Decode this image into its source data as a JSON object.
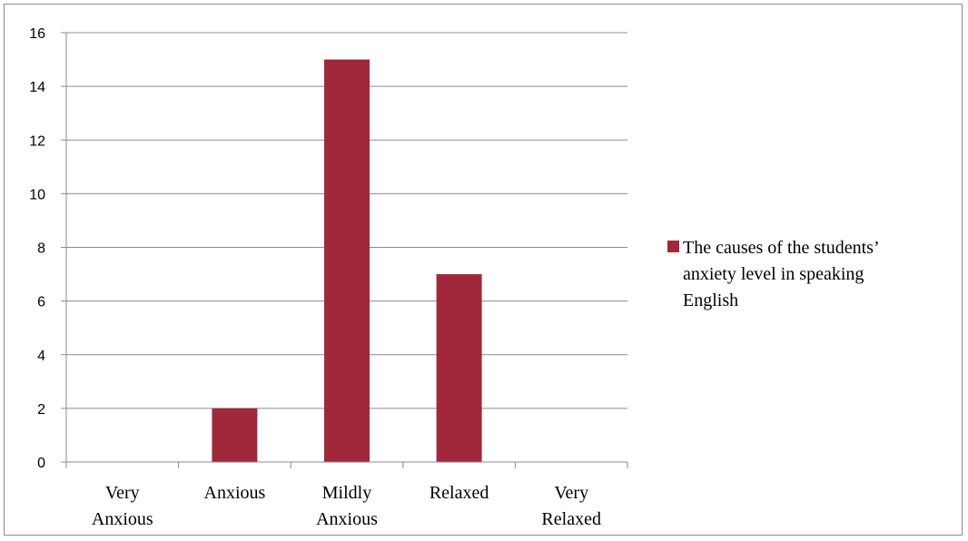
{
  "chart_data": {
    "type": "bar",
    "title": "",
    "xlabel": "",
    "ylabel": "",
    "categories": [
      [
        "Very",
        "Anxious"
      ],
      [
        "Anxious"
      ],
      [
        "Mildly",
        "Anxious"
      ],
      [
        "Relaxed"
      ],
      [
        "Very",
        "Relaxed"
      ]
    ],
    "series": [
      {
        "name": "The causes of the students’ anxiety level in speaking English",
        "name_lines": [
          "The causes of the students’",
          "anxiety level in speaking",
          "English"
        ],
        "values": [
          0,
          2,
          15,
          7,
          0
        ],
        "color": "#a0283a"
      }
    ],
    "ylim": [
      0,
      16
    ],
    "yticks": [
      0,
      2,
      4,
      6,
      8,
      10,
      12,
      14,
      16
    ],
    "grid": true,
    "legend_position": "right"
  }
}
